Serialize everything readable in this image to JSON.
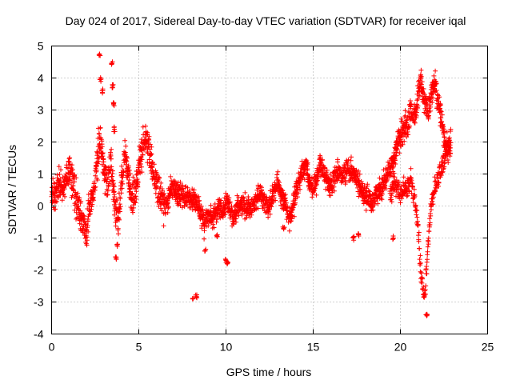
{
  "chart_data": {
    "type": "scatter",
    "title": "Day 024 of 2017, Sidereal Day-to-day VTEC variation (SDTVAR) for receiver iqal",
    "xlabel": "GPS time / hours",
    "ylabel": "SDTVAR / TECUs",
    "xlim": [
      0,
      25
    ],
    "ylim": [
      -4,
      5
    ],
    "xticks": [
      0,
      5,
      10,
      15,
      20,
      25
    ],
    "yticks": [
      -4,
      -3,
      -2,
      -1,
      0,
      1,
      2,
      3,
      4,
      5
    ],
    "x_tick_labels": [
      "0",
      "5",
      "10",
      "15",
      "20",
      "25"
    ],
    "y_tick_labels": [
      "-4",
      "-3",
      "-2",
      "-1",
      "0",
      "1",
      "2",
      "3",
      "4",
      "5"
    ],
    "grid": true,
    "marker": "+",
    "color": "#ff0000",
    "series": [
      {
        "name": "SDTVAR",
        "trend": [
          [
            0.0,
            0.4
          ],
          [
            0.2,
            0.3
          ],
          [
            0.4,
            0.7
          ],
          [
            0.6,
            0.5
          ],
          [
            0.8,
            0.8
          ],
          [
            1.0,
            1.1
          ],
          [
            1.2,
            0.8
          ],
          [
            1.4,
            0.2
          ],
          [
            1.6,
            -0.2
          ],
          [
            1.8,
            -0.5
          ],
          [
            2.0,
            -0.9
          ],
          [
            2.2,
            0.1
          ],
          [
            2.4,
            0.3
          ],
          [
            2.6,
            1.5
          ],
          [
            2.8,
            2.0
          ],
          [
            3.0,
            1.2
          ],
          [
            3.2,
            0.5
          ],
          [
            3.4,
            1.5
          ],
          [
            3.6,
            0.2
          ],
          [
            3.8,
            -0.5
          ],
          [
            4.0,
            0.6
          ],
          [
            4.2,
            1.6
          ],
          [
            4.4,
            1.0
          ],
          [
            4.6,
            0.2
          ],
          [
            4.8,
            0.4
          ],
          [
            5.0,
            1.2
          ],
          [
            5.2,
            1.7
          ],
          [
            5.4,
            2.1
          ],
          [
            5.6,
            1.8
          ],
          [
            5.8,
            1.0
          ],
          [
            6.0,
            0.6
          ],
          [
            6.2,
            0.4
          ],
          [
            6.4,
            0.2
          ],
          [
            6.6,
            0.0
          ],
          [
            6.8,
            0.4
          ],
          [
            7.0,
            0.6
          ],
          [
            7.2,
            0.3
          ],
          [
            7.4,
            0.4
          ],
          [
            7.6,
            0.2
          ],
          [
            7.8,
            0.3
          ],
          [
            8.0,
            0.1
          ],
          [
            8.2,
            0.2
          ],
          [
            8.4,
            0.0
          ],
          [
            8.6,
            -0.4
          ],
          [
            8.8,
            -0.5
          ],
          [
            9.0,
            -0.3
          ],
          [
            9.2,
            -0.4
          ],
          [
            9.4,
            -0.2
          ],
          [
            9.6,
            0.0
          ],
          [
            9.8,
            -0.2
          ],
          [
            10.0,
            0.1
          ],
          [
            10.2,
            0.0
          ],
          [
            10.4,
            -0.3
          ],
          [
            10.6,
            -0.2
          ],
          [
            10.8,
            0.0
          ],
          [
            11.0,
            0.1
          ],
          [
            11.2,
            -0.1
          ],
          [
            11.4,
            0.0
          ],
          [
            11.6,
            0.1
          ],
          [
            11.8,
            0.2
          ],
          [
            12.0,
            0.4
          ],
          [
            12.2,
            0.2
          ],
          [
            12.4,
            0.0
          ],
          [
            12.6,
            0.2
          ],
          [
            12.8,
            0.5
          ],
          [
            13.0,
            0.7
          ],
          [
            13.2,
            0.3
          ],
          [
            13.4,
            0.1
          ],
          [
            13.6,
            -0.4
          ],
          [
            13.8,
            -0.2
          ],
          [
            14.0,
            0.5
          ],
          [
            14.2,
            0.8
          ],
          [
            14.4,
            1.1
          ],
          [
            14.6,
            1.3
          ],
          [
            14.8,
            0.7
          ],
          [
            15.0,
            0.5
          ],
          [
            15.2,
            0.8
          ],
          [
            15.4,
            1.4
          ],
          [
            15.6,
            1.0
          ],
          [
            15.8,
            0.8
          ],
          [
            16.0,
            0.6
          ],
          [
            16.2,
            0.8
          ],
          [
            16.4,
            1.1
          ],
          [
            16.6,
            0.9
          ],
          [
            16.8,
            1.0
          ],
          [
            17.0,
            1.2
          ],
          [
            17.2,
            1.1
          ],
          [
            17.4,
            0.9
          ],
          [
            17.6,
            0.7
          ],
          [
            17.8,
            0.4
          ],
          [
            18.0,
            0.3
          ],
          [
            18.2,
            0.3
          ],
          [
            18.4,
            0.0
          ],
          [
            18.6,
            0.4
          ],
          [
            18.8,
            0.5
          ],
          [
            19.0,
            0.7
          ],
          [
            19.2,
            0.9
          ],
          [
            19.4,
            1.2
          ],
          [
            19.6,
            1.4
          ],
          [
            19.8,
            1.9
          ],
          [
            20.0,
            2.2
          ],
          [
            20.2,
            2.5
          ],
          [
            20.4,
            2.4
          ],
          [
            20.6,
            3.0
          ],
          [
            20.8,
            2.7
          ],
          [
            21.0,
            3.5
          ],
          [
            21.2,
            3.8
          ],
          [
            21.4,
            3.2
          ],
          [
            21.6,
            3.0
          ],
          [
            21.8,
            3.6
          ],
          [
            22.0,
            3.8
          ],
          [
            22.2,
            3.2
          ],
          [
            22.4,
            2.5
          ],
          [
            22.6,
            1.8
          ],
          [
            22.8,
            1.8
          ],
          [
            22.9,
            2.0
          ]
        ],
        "secondary_trend": [
          [
            19.4,
            0.3
          ],
          [
            19.6,
            0.6
          ],
          [
            19.8,
            0.6
          ],
          [
            20.0,
            0.3
          ],
          [
            20.2,
            0.5
          ],
          [
            20.4,
            0.5
          ],
          [
            20.6,
            0.8
          ],
          [
            20.8,
            0.2
          ],
          [
            21.0,
            -0.5
          ],
          [
            21.2,
            -2.3
          ],
          [
            21.4,
            -3.0
          ],
          [
            21.6,
            -1.0
          ],
          [
            21.8,
            0.2
          ],
          [
            22.0,
            0.6
          ],
          [
            22.2,
            0.9
          ],
          [
            22.4,
            1.3
          ],
          [
            22.6,
            1.6
          ],
          [
            22.8,
            1.9
          ]
        ],
        "outliers": [
          [
            2.75,
            4.75
          ],
          [
            2.8,
            3.95
          ],
          [
            2.9,
            3.6
          ],
          [
            3.45,
            4.45
          ],
          [
            3.5,
            3.75
          ],
          [
            3.55,
            3.2
          ],
          [
            3.6,
            2.4
          ],
          [
            3.7,
            -1.6
          ],
          [
            3.75,
            -1.2
          ],
          [
            8.1,
            -2.9
          ],
          [
            8.3,
            -2.85
          ],
          [
            10.0,
            -1.7
          ],
          [
            10.1,
            -1.75
          ],
          [
            9.5,
            -0.9
          ],
          [
            13.3,
            -0.7
          ],
          [
            17.3,
            -1.0
          ],
          [
            17.6,
            -0.9
          ],
          [
            19.6,
            -1.0
          ],
          [
            21.5,
            -3.4
          ],
          [
            8.8,
            -1.4
          ]
        ]
      }
    ]
  }
}
